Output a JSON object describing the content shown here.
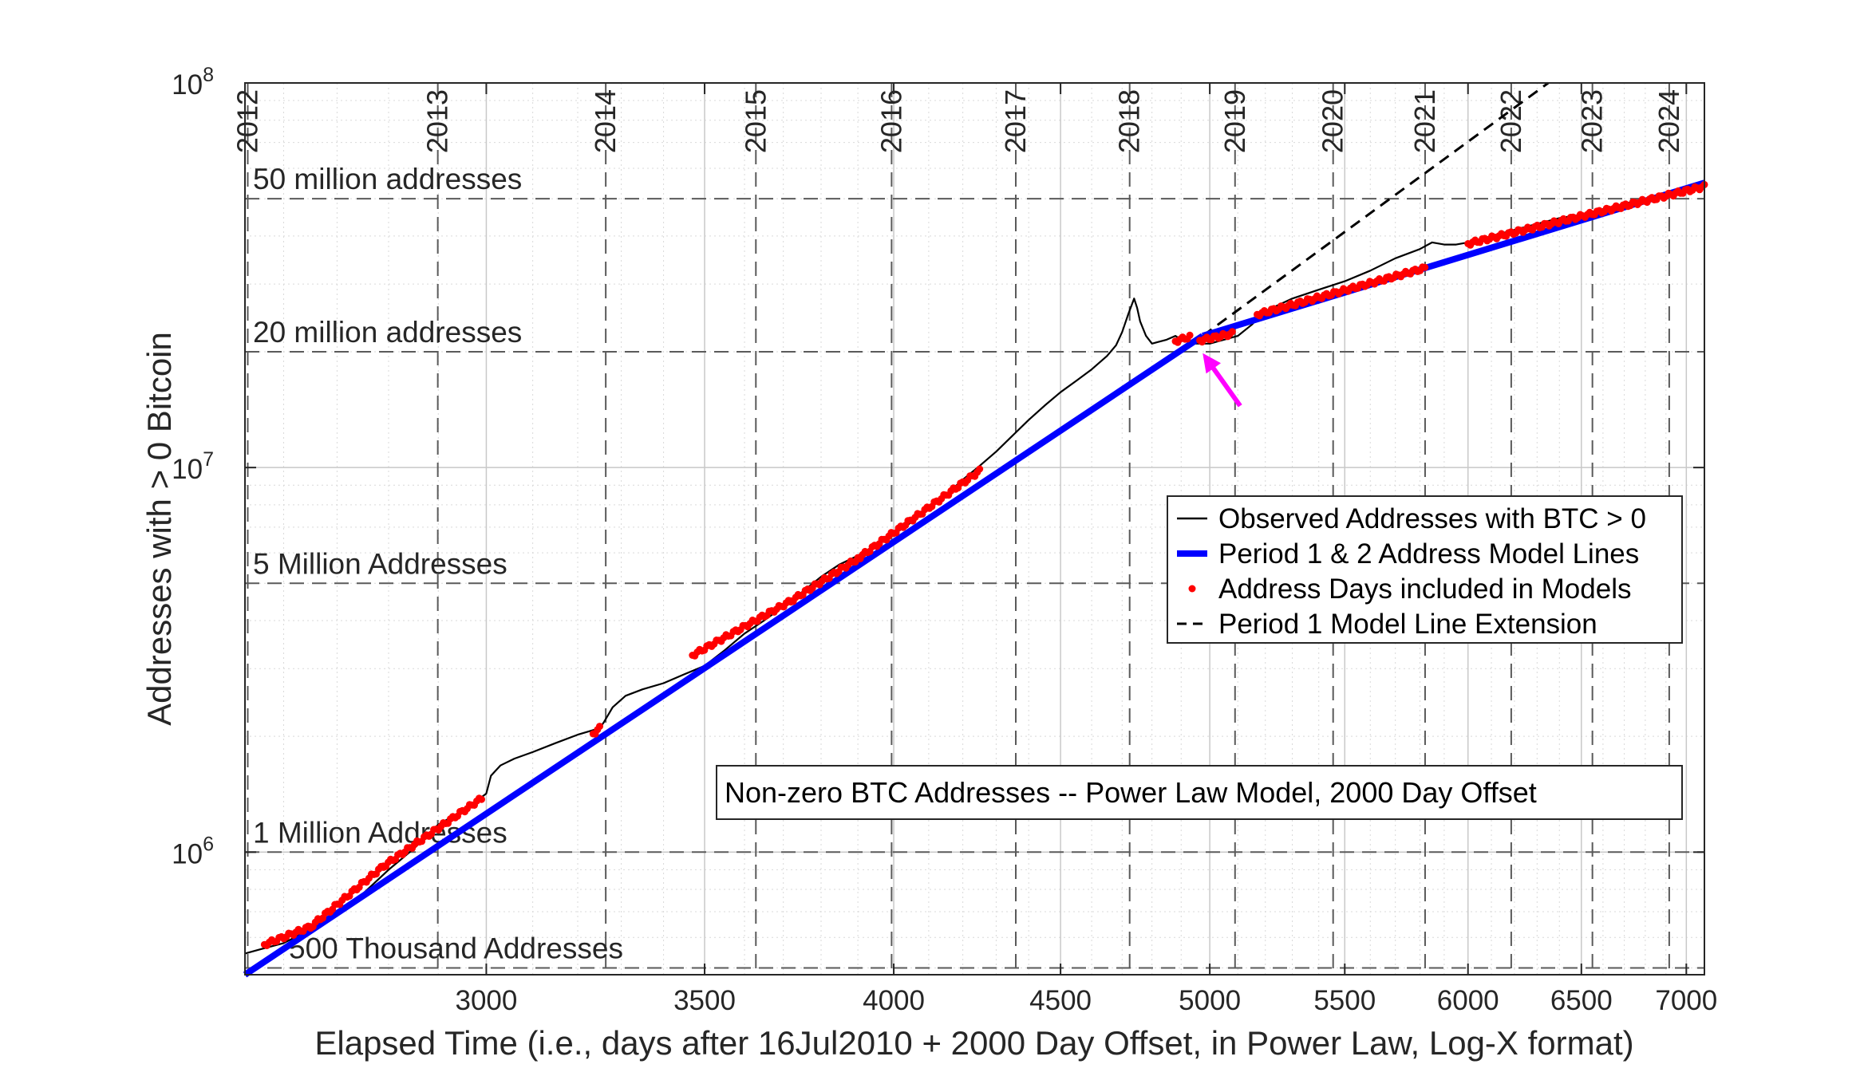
{
  "chart_data": {
    "type": "line",
    "title": "",
    "xlabel": "Elapsed Time (i.e., days after 16Jul2010 + 2000 Day Offset, in Power Law, Log-X format)",
    "ylabel": "Addresses with > 0 Bitcoin",
    "x_scale": "log",
    "y_scale": "log",
    "xlim": [
      2530,
      7090
    ],
    "ylim": [
      480000,
      100000000
    ],
    "grid": true,
    "x_ticks": [
      {
        "value": 3000,
        "label": "3000"
      },
      {
        "value": 3500,
        "label": "3500"
      },
      {
        "value": 4000,
        "label": "4000"
      },
      {
        "value": 4500,
        "label": "4500"
      },
      {
        "value": 5000,
        "label": "5000"
      },
      {
        "value": 5500,
        "label": "5500"
      },
      {
        "value": 6000,
        "label": "6000"
      },
      {
        "value": 6500,
        "label": "6500"
      },
      {
        "value": 7000,
        "label": "7000"
      }
    ],
    "y_ticks": [
      {
        "value": 1000000,
        "base": "10",
        "exp": "6"
      },
      {
        "value": 10000000,
        "base": "10",
        "exp": "7"
      },
      {
        "value": 100000000,
        "base": "10",
        "exp": "8"
      }
    ],
    "year_markers": [
      {
        "label": "2012",
        "x": 2535
      },
      {
        "label": "2013",
        "x": 2899
      },
      {
        "label": "2014",
        "x": 3264
      },
      {
        "label": "2015",
        "x": 3629
      },
      {
        "label": "2016",
        "x": 3994
      },
      {
        "label": "2017",
        "x": 4360
      },
      {
        "label": "2018",
        "x": 4725
      },
      {
        "label": "2019",
        "x": 5090
      },
      {
        "label": "2020",
        "x": 5455
      },
      {
        "label": "2021",
        "x": 5821
      },
      {
        "label": "2022",
        "x": 6186
      },
      {
        "label": "2023",
        "x": 6551
      },
      {
        "label": "2024",
        "x": 6916
      }
    ],
    "reference_lines": [
      {
        "value": 50000000,
        "label": "50 million addresses"
      },
      {
        "value": 20000000,
        "label": "20 million addresses"
      },
      {
        "value": 5000000,
        "label": "5 Million Addresses"
      },
      {
        "value": 1000000,
        "label": "1 Million Addresses"
      },
      {
        "value": 500000,
        "label": "500 Thousand Addresses"
      }
    ],
    "legend": {
      "position": "right",
      "entries": [
        {
          "label": "Observed Addresses with BTC > 0",
          "style": "thin-line",
          "color": "#000000"
        },
        {
          "label": "Period 1 & 2 Address Model Lines",
          "style": "thick-line",
          "color": "#0000ff"
        },
        {
          "label": "Address Days included in Models",
          "style": "dot",
          "color": "#ff0000"
        },
        {
          "label": "Period 1 Model Line Extension",
          "style": "dashed",
          "color": "#000000"
        }
      ]
    },
    "annotation": {
      "text": "Non-zero BTC Addresses -- Power Law Model, 2000 Day Offset",
      "arrow_color": "#ff00ff",
      "arrow_target": {
        "x": 4975,
        "y": 21200000
      }
    },
    "series": [
      {
        "name": "Observed Addresses with BTC > 0",
        "color": "#000000",
        "x": [
          2530,
          2560,
          2600,
          2650,
          2700,
          2750,
          2800,
          2850,
          2900,
          2960,
          3000,
          3010,
          3030,
          3060,
          3100,
          3150,
          3200,
          3250,
          3260,
          3280,
          3310,
          3350,
          3400,
          3450,
          3500,
          3550,
          3600,
          3650,
          3700,
          3750,
          3800,
          3850,
          3900,
          3950,
          4000,
          4050,
          4100,
          4150,
          4200,
          4250,
          4300,
          4350,
          4400,
          4450,
          4500,
          4550,
          4600,
          4650,
          4680,
          4700,
          4720,
          4740,
          4750,
          4760,
          4780,
          4800,
          4820,
          4850,
          4880,
          4900,
          4950,
          5000,
          5050,
          5100,
          5150,
          5200,
          5250,
          5300,
          5400,
          5500,
          5600,
          5700,
          5800,
          5850,
          5900,
          5950,
          6000,
          6100,
          6200,
          6300,
          6400,
          6500,
          6600,
          6700,
          6800,
          6900,
          7000,
          7090
        ],
        "y": [
          545000,
          560000,
          580000,
          630000,
          700000,
          780000,
          900000,
          1020000,
          1180000,
          1300000,
          1420000,
          1580000,
          1680000,
          1750000,
          1820000,
          1920000,
          2020000,
          2100000,
          2180000,
          2380000,
          2550000,
          2650000,
          2750000,
          2900000,
          3050000,
          3350000,
          3700000,
          4000000,
          4350000,
          4750000,
          5200000,
          5600000,
          5900000,
          6300000,
          6700000,
          7200000,
          7800000,
          8500000,
          9300000,
          10100000,
          11000000,
          12100000,
          13300000,
          14500000,
          15700000,
          16800000,
          18000000,
          19500000,
          20800000,
          22500000,
          25000000,
          27500000,
          26000000,
          24000000,
          22000000,
          21000000,
          21200000,
          21500000,
          22000000,
          21500000,
          21000000,
          21000000,
          21500000,
          22000000,
          23500000,
          25500000,
          26500000,
          27500000,
          29000000,
          30500000,
          32500000,
          35000000,
          37000000,
          38500000,
          38000000,
          38000000,
          38500000,
          40000000,
          41500000,
          43000000,
          44500000,
          45500000,
          47000000,
          48500000,
          50000000,
          52000000,
          53500000,
          54000000
        ]
      },
      {
        "name": "Period 1 & 2 Address Model Lines",
        "color": "#0000ff",
        "segments": [
          {
            "x": [
              2530,
              4975
            ],
            "y": [
              480000,
              22000000
            ]
          },
          {
            "x": 4975,
            "y": [
              22000000,
              55000000
            ],
            "x_end": 7090
          }
        ]
      },
      {
        "name": "Address Days included in Models",
        "color": "#ff0000",
        "ranges": [
          {
            "x": [
              2565,
              2650
            ],
            "y": [
              575000,
              640000
            ]
          },
          {
            "x": [
              2650,
              2790
            ],
            "y": [
              640000,
              920000
            ]
          },
          {
            "x": [
              2790,
              2990
            ],
            "y": [
              920000,
              1380000
            ]
          },
          {
            "x": [
              3235,
              3250
            ],
            "y": [
              2030000,
              2100000
            ]
          },
          {
            "x": [
              3470,
              3720
            ],
            "y": [
              3250000,
              4500000
            ]
          },
          {
            "x": [
              3720,
              3900
            ],
            "y": [
              4500000,
              5800000
            ]
          },
          {
            "x": [
              3900,
              4250
            ],
            "y": [
              5800000,
              9800000
            ]
          },
          {
            "x": [
              4880,
              4930
            ],
            "y": [
              21300000,
              21900000
            ]
          },
          {
            "x": [
              4965,
              5080
            ],
            "y": [
              21400000,
              22300000
            ]
          },
          {
            "x": [
              5170,
              5820
            ],
            "y": [
              25000000,
              33000000
            ]
          },
          {
            "x": [
              6000,
              7090
            ],
            "y": [
              38200000,
              53800000
            ]
          }
        ]
      },
      {
        "name": "Period 1 Model Line Extension",
        "color": "#000000",
        "x": [
          4975,
          6350
        ],
        "y": [
          22000000,
          100000000
        ]
      }
    ]
  }
}
